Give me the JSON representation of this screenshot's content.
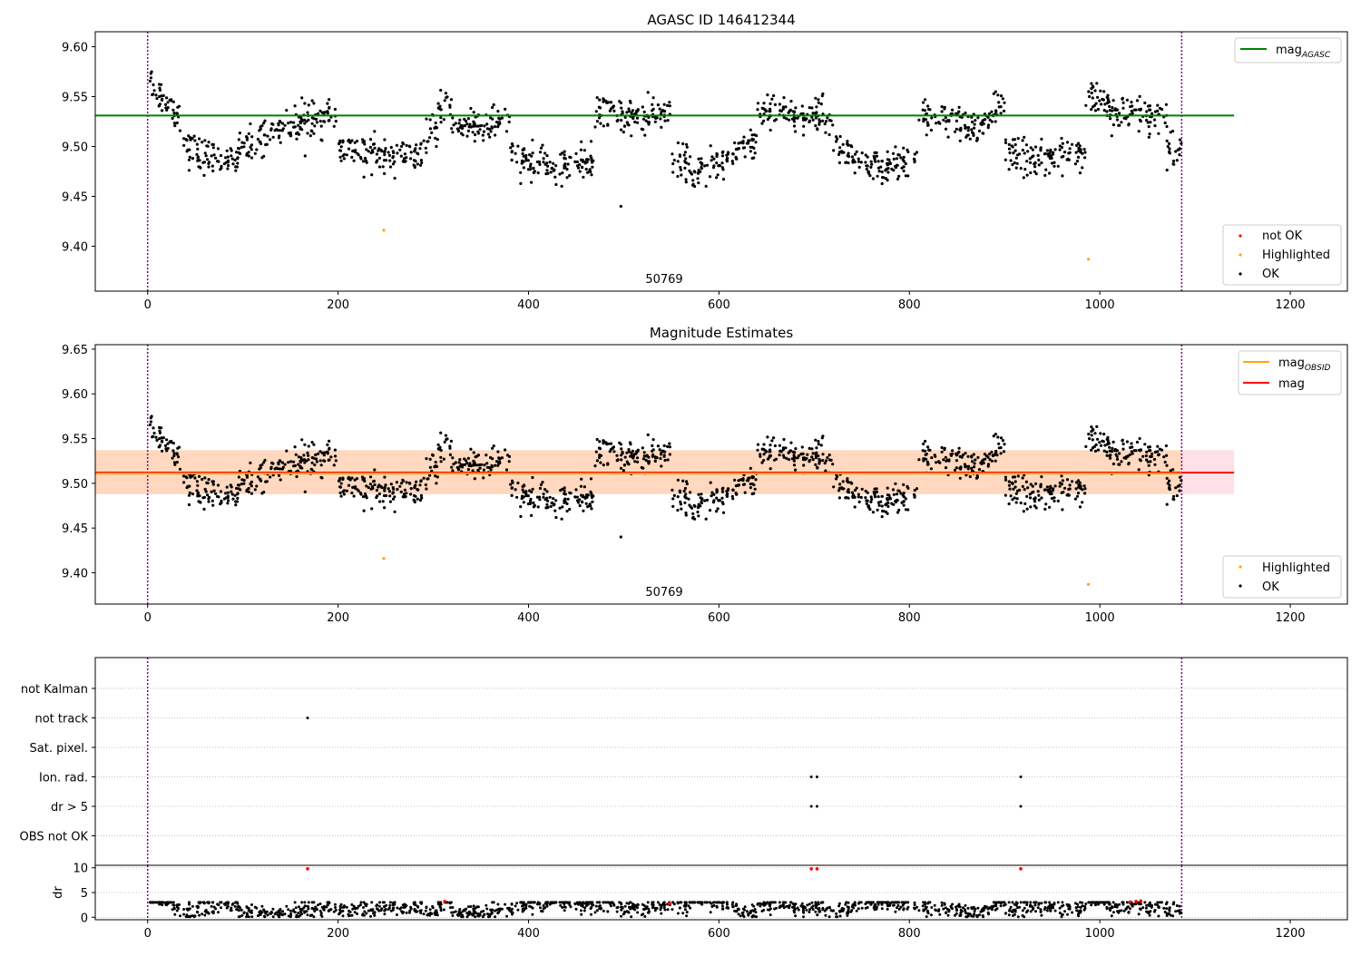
{
  "colors": {
    "mag_agasc_line": "#008000",
    "mag_obsid_line": "#ffa500",
    "mag_line": "#ff0000",
    "not_ok_points": "#ff0000",
    "highlighted_points": "#ffa500",
    "ok_points": "#000000",
    "boundary_line": "#800080",
    "band_obsid": "#ffd8bf",
    "band_mag": "#ffe0e6"
  },
  "chart_data": [
    {
      "type": "scatter",
      "title": "AGASC ID 146412344",
      "xlim": [
        -55,
        1260
      ],
      "ylim": [
        9.355,
        9.615
      ],
      "xticks": [
        0,
        200,
        400,
        600,
        800,
        1000,
        1200
      ],
      "yticks": [
        9.4,
        9.45,
        9.5,
        9.55,
        9.6
      ],
      "grid": false,
      "obsid_label": "50769",
      "obsid_label_x": 540,
      "vlines": [
        0,
        1086
      ],
      "hlines": [
        {
          "name": "mag_AGASC",
          "y": 9.531,
          "xmin": -55,
          "xmax": 1141
        }
      ],
      "legend_lines": [
        {
          "label": "mag",
          "sub": "AGASC"
        }
      ],
      "legend_lines_loc": "upper right",
      "legend_points": [
        "not OK",
        "Highlighted",
        "OK"
      ],
      "legend_points_loc": "lower right",
      "highlighted": [
        {
          "x": 248,
          "y": 9.416
        },
        {
          "x": 988,
          "y": 9.387
        }
      ],
      "outliers": [
        {
          "x": 497,
          "y": 9.44
        }
      ]
    },
    {
      "type": "scatter",
      "title": "Magnitude Estimates",
      "xlim": [
        -55,
        1260
      ],
      "ylim": [
        9.365,
        9.655
      ],
      "xticks": [
        0,
        200,
        400,
        600,
        800,
        1000,
        1200
      ],
      "yticks": [
        9.4,
        9.45,
        9.5,
        9.55,
        9.6,
        9.65
      ],
      "grid": false,
      "obsid_label": "50769",
      "obsid_label_x": 540,
      "vlines": [
        0,
        1086
      ],
      "hlines": [
        {
          "name": "mag_OBSID",
          "y": 9.511,
          "xmin": -55,
          "xmax": 1086
        },
        {
          "name": "mag",
          "y": 9.512,
          "xmin": -55,
          "xmax": 1141
        }
      ],
      "bands": [
        {
          "name": "mag_OBSID",
          "ymin": 9.488,
          "ymax": 9.537,
          "xmin": -55,
          "xmax": 1086
        },
        {
          "name": "mag",
          "ymin": 9.488,
          "ymax": 9.537,
          "xmin": 1086,
          "xmax": 1141
        }
      ],
      "legend_lines": [
        {
          "label": "mag",
          "sub": "OBSID"
        },
        {
          "label": "mag",
          "sub": ""
        }
      ],
      "legend_lines_loc": "upper right",
      "legend_points": [
        "Highlighted",
        "OK"
      ],
      "legend_points_loc": "lower right",
      "highlighted": [
        {
          "x": 248,
          "y": 9.416
        },
        {
          "x": 988,
          "y": 9.387
        }
      ],
      "outliers": [
        {
          "x": 497,
          "y": 9.44
        }
      ]
    },
    {
      "type": "scatter",
      "title": "",
      "xlim": [
        -55,
        1260
      ],
      "xticks": [
        0,
        200,
        400,
        600,
        800,
        1000,
        1200
      ],
      "categories": [
        "not Kalman",
        "not track",
        "Sat. pixel.",
        "Ion. rad.",
        "dr > 5",
        "OBS not OK"
      ],
      "grid": true,
      "vlines": [
        0,
        1086
      ],
      "flag_points": [
        {
          "category": "not track",
          "x": [
            168
          ]
        },
        {
          "category": "Ion. rad.",
          "x": [
            697,
            703,
            917
          ]
        },
        {
          "category": "dr > 5",
          "x": [
            697,
            703,
            917
          ]
        }
      ]
    },
    {
      "type": "scatter",
      "title": "",
      "ylabel": "dr",
      "xlim": [
        -55,
        1260
      ],
      "ylim": [
        -0.5,
        10.5
      ],
      "yticks": [
        0,
        5,
        10
      ],
      "xticks": [
        0,
        200,
        400,
        600,
        800,
        1000,
        1200
      ],
      "grid": true,
      "vlines": [
        0,
        1086
      ],
      "red_points": [
        {
          "x": 168,
          "y": 9.8
        },
        {
          "x": 312,
          "y": 3.2
        },
        {
          "x": 548,
          "y": 2.8
        },
        {
          "x": 697,
          "y": 9.8
        },
        {
          "x": 703,
          "y": 9.8
        },
        {
          "x": 917,
          "y": 9.8
        },
        {
          "x": 1032,
          "y": 3.1
        },
        {
          "x": 1038,
          "y": 3.2
        },
        {
          "x": 1043,
          "y": 3.3
        }
      ]
    }
  ]
}
